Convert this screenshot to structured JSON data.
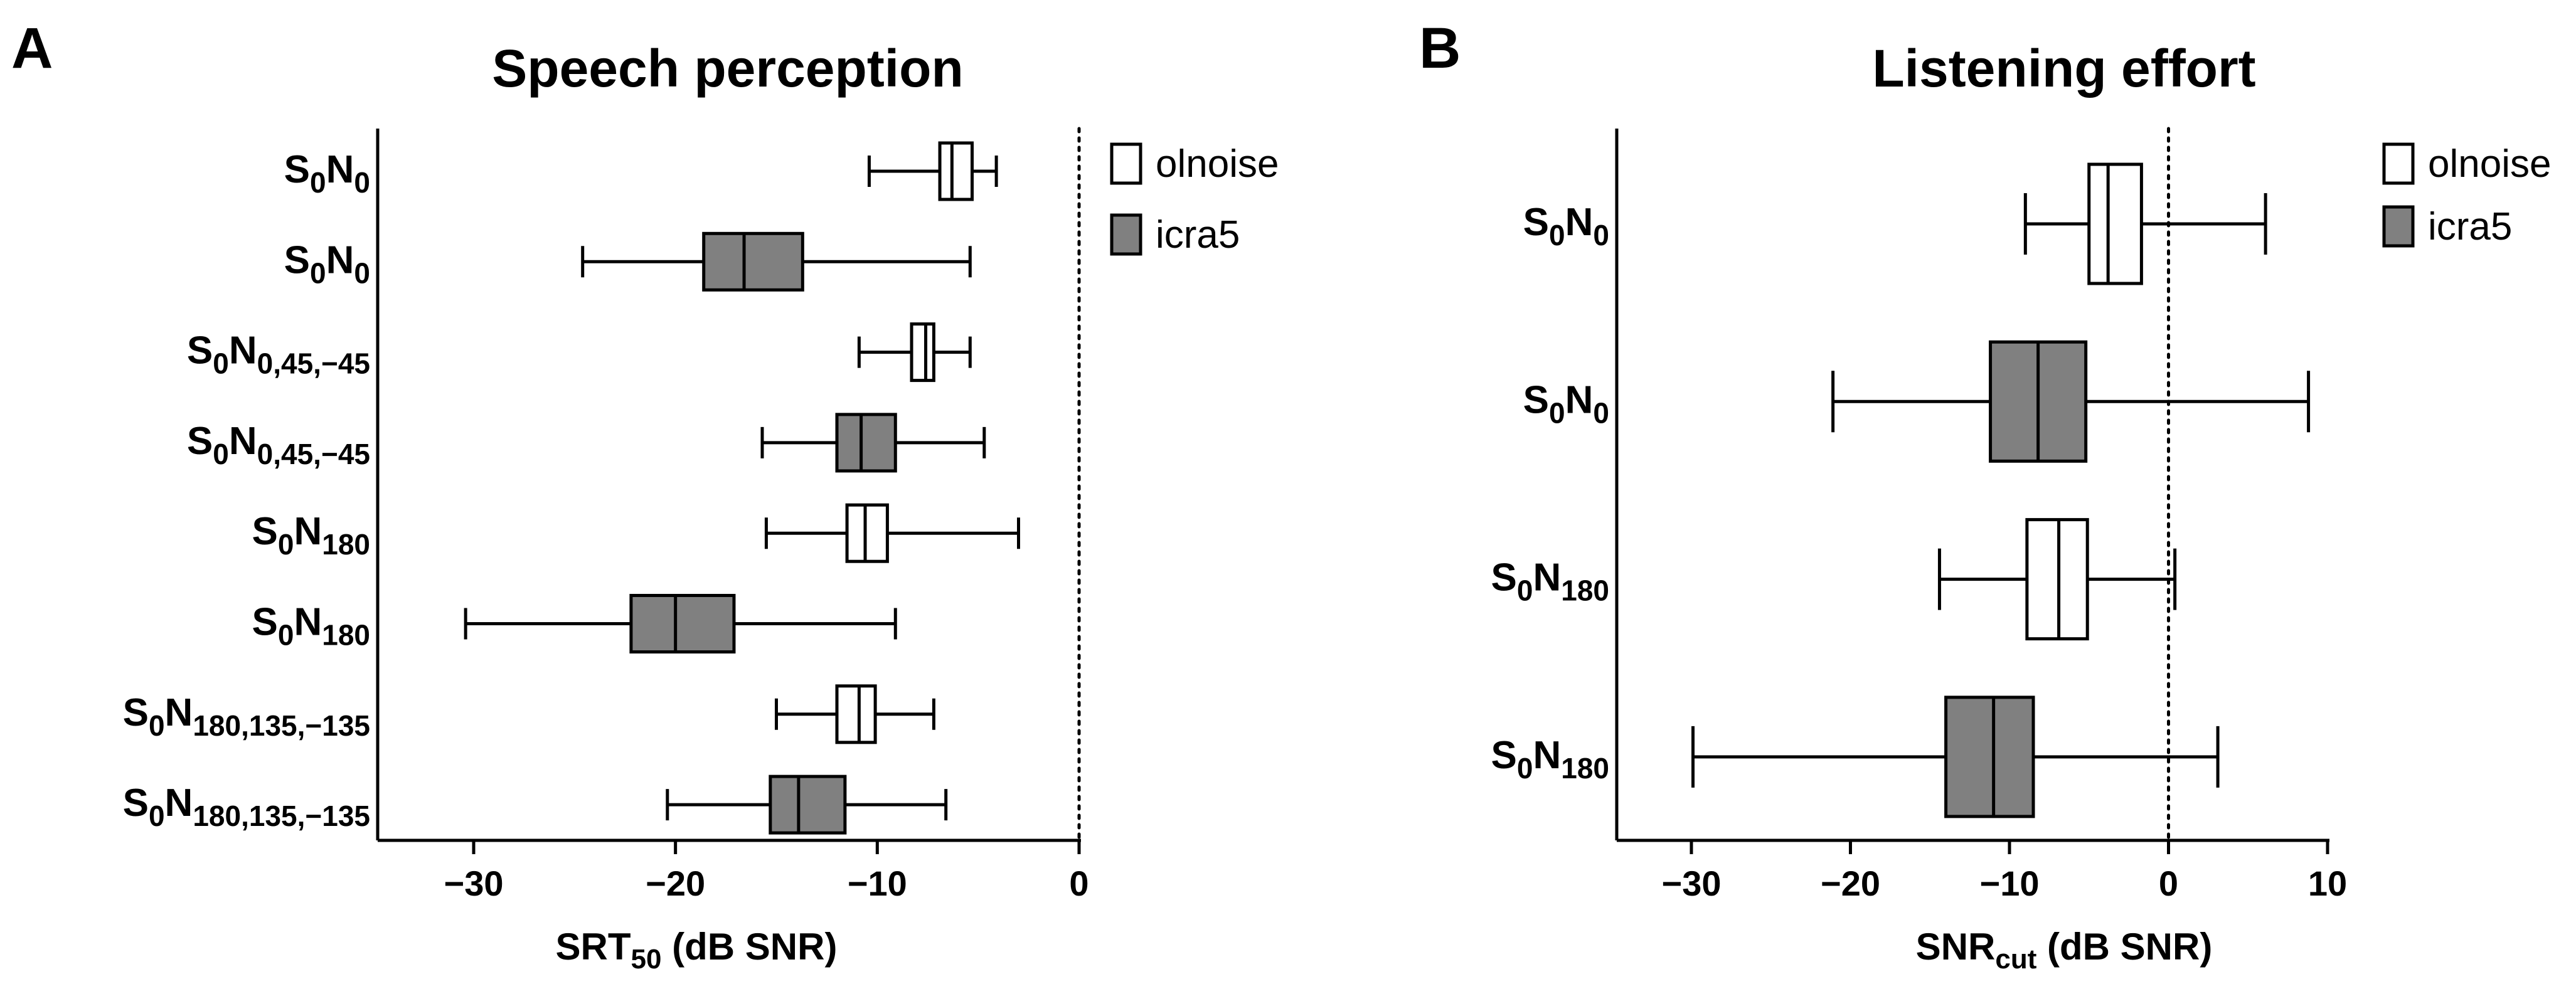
{
  "panels": [
    {
      "letter": "A",
      "title": "Speech perception",
      "xlabel": {
        "main": "SRT",
        "sub": "50",
        "rest": " (dB  SNR)"
      },
      "legend": [
        {
          "label": "olnoise",
          "fill": "#ffffff"
        },
        {
          "label": "icra5",
          "fill": "#808080"
        }
      ]
    },
    {
      "letter": "B",
      "title": "Listening effort",
      "xlabel": {
        "main": "SNR",
        "sub": "cut",
        "rest": " (dB  SNR)"
      },
      "legend": [
        {
          "label": "olnoise",
          "fill": "#ffffff"
        },
        {
          "label": "icra5",
          "fill": "#808080"
        }
      ]
    }
  ],
  "chart_data": [
    {
      "type": "boxplot",
      "orientation": "horizontal",
      "title": "Speech perception",
      "xlabel": "SRT50 (dB  SNR)",
      "xlim": [
        -35,
        0
      ],
      "xticks": [
        -30,
        -20,
        -10,
        0
      ],
      "xtick_labels": [
        "−30",
        "−20",
        "−10",
        "0"
      ],
      "reference_line": 0,
      "categories": [
        {
          "S": "S",
          "s0": "0",
          "N": "N",
          "sub": "0",
          "noise": "olnoise",
          "fill": "#ffffff",
          "min": -10.4,
          "q1": -6.9,
          "median": -6.3,
          "q3": -5.3,
          "max": -4.1
        },
        {
          "S": "S",
          "s0": "0",
          "N": "N",
          "sub": "0",
          "noise": "icra5",
          "fill": "#808080",
          "min": -24.6,
          "q1": -18.6,
          "median": -16.6,
          "q3": -13.7,
          "max": -5.4
        },
        {
          "S": "S",
          "s0": "0",
          "N": "N",
          "sub": "0,45,−45",
          "noise": "olnoise",
          "fill": "#ffffff",
          "min": -10.9,
          "q1": -8.3,
          "median": -7.6,
          "q3": -7.2,
          "max": -5.4
        },
        {
          "S": "S",
          "s0": "0",
          "N": "N",
          "sub": "0,45,−45",
          "noise": "icra5",
          "fill": "#808080",
          "min": -15.7,
          "q1": -12.0,
          "median": -10.8,
          "q3": -9.1,
          "max": -4.7
        },
        {
          "S": "S",
          "s0": "0",
          "N": "N",
          "sub": "180",
          "noise": "olnoise",
          "fill": "#ffffff",
          "min": -15.5,
          "q1": -11.5,
          "median": -10.6,
          "q3": -9.5,
          "max": -3.0
        },
        {
          "S": "S",
          "s0": "0",
          "N": "N",
          "sub": "180",
          "noise": "icra5",
          "fill": "#808080",
          "min": -30.4,
          "q1": -22.2,
          "median": -20.0,
          "q3": -17.1,
          "max": -9.1
        },
        {
          "S": "S",
          "s0": "0",
          "N": "N",
          "sub": "180,135,−135",
          "noise": "olnoise",
          "fill": "#ffffff",
          "min": -15.0,
          "q1": -12.0,
          "median": -10.9,
          "q3": -10.1,
          "max": -7.2
        },
        {
          "S": "S",
          "s0": "0",
          "N": "N",
          "sub": "180,135,−135",
          "noise": "icra5",
          "fill": "#808080",
          "min": -20.4,
          "q1": -15.3,
          "median": -13.9,
          "q3": -11.6,
          "max": -6.6
        }
      ]
    },
    {
      "type": "boxplot",
      "orientation": "horizontal",
      "title": "Listening effort",
      "xlabel": "SNRcut (dB  SNR)",
      "xlim": [
        -35,
        10
      ],
      "xticks": [
        -30,
        -20,
        -10,
        0,
        10
      ],
      "xtick_labels": [
        "−30",
        "−20",
        "−10",
        "0",
        "10"
      ],
      "reference_line": 0,
      "categories": [
        {
          "S": "S",
          "s0": "0",
          "N": "N",
          "sub": "0",
          "noise": "olnoise",
          "fill": "#ffffff",
          "min": -9.0,
          "q1": -5.0,
          "median": -3.8,
          "q3": -1.7,
          "max": 6.1
        },
        {
          "S": "S",
          "s0": "0",
          "N": "N",
          "sub": "0",
          "noise": "icra5",
          "fill": "#808080",
          "min": -21.1,
          "q1": -11.2,
          "median": -8.2,
          "q3": -5.2,
          "max": 8.8
        },
        {
          "S": "S",
          "s0": "0",
          "N": "N",
          "sub": "180",
          "noise": "olnoise",
          "fill": "#ffffff",
          "min": -14.4,
          "q1": -8.9,
          "median": -6.9,
          "q3": -5.1,
          "max": 0.4
        },
        {
          "S": "S",
          "s0": "0",
          "N": "N",
          "sub": "180",
          "noise": "icra5",
          "fill": "#808080",
          "min": -29.9,
          "q1": -14.0,
          "median": -11.0,
          "q3": -8.5,
          "max": 3.1
        }
      ]
    }
  ]
}
